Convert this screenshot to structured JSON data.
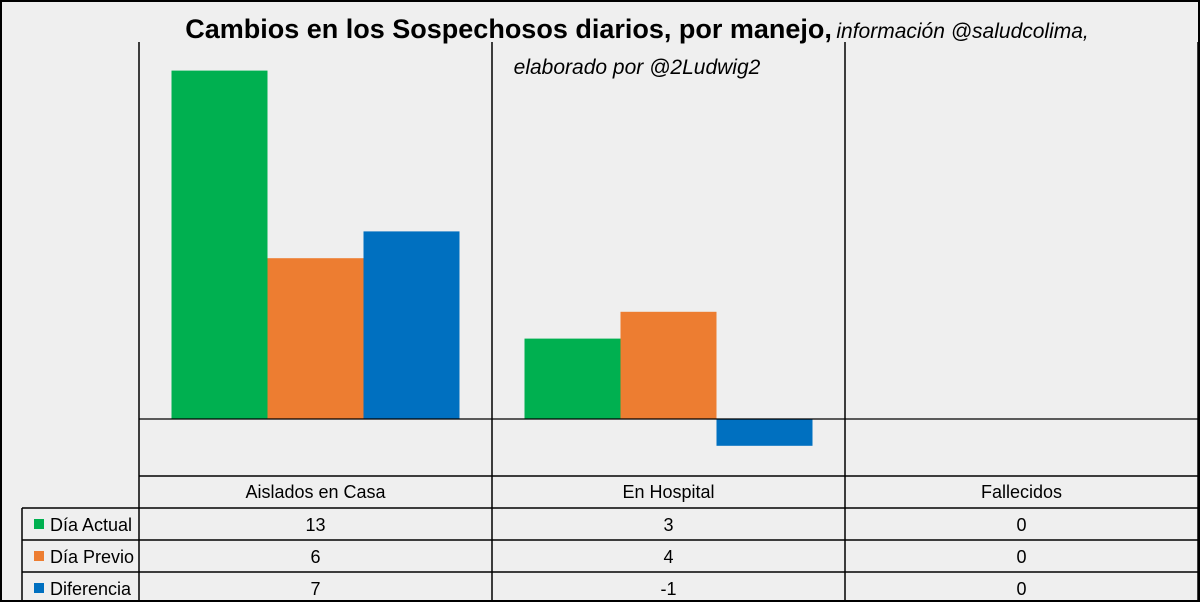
{
  "chart_data": {
    "type": "bar",
    "title": "Cambios en los Sospechosos diarios, por manejo,",
    "subtitle": "información @saludcolima, elaborado por @2Ludwig2",
    "categories": [
      "Aislados en Casa",
      "En Hospital",
      "Fallecidos"
    ],
    "series": [
      {
        "name": "Día Actual",
        "color": "#00b050",
        "values": [
          13,
          3,
          0
        ]
      },
      {
        "name": "Día Previo",
        "color": "#ed7d31",
        "values": [
          6,
          4,
          0
        ]
      },
      {
        "name": "Diferencia",
        "color": "#0070c0",
        "values": [
          7,
          -1,
          0
        ]
      }
    ],
    "ylim": [
      -1.5,
      14
    ],
    "grid": "vertical category separators",
    "legend": "data table below chart"
  }
}
